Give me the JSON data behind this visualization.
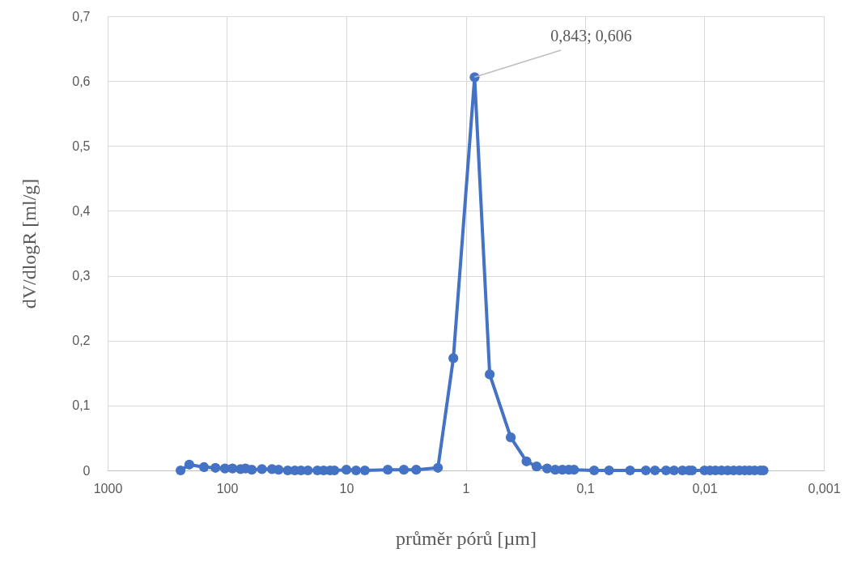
{
  "chart_data": {
    "type": "line",
    "xlabel": "průměr pórů [µm]",
    "ylabel": "dV/dlogR [ml/g]",
    "log": "x",
    "grid": true,
    "marker": "circle",
    "line_style": "solid",
    "xlim": [
      1000,
      0.001
    ],
    "xticks": [
      1000,
      100,
      10,
      1,
      {
        "value": 0.1,
        "label": "0,1"
      },
      {
        "value": 0.01,
        "label": "0,01"
      },
      {
        "value": 0.001,
        "label": "0,001"
      }
    ],
    "ylim": [
      0,
      0.7
    ],
    "yticks": [
      0,
      {
        "value": 0.1,
        "label": "0,1"
      },
      {
        "value": 0.2,
        "label": "0,2"
      },
      {
        "value": 0.3,
        "label": "0,3"
      },
      {
        "value": 0.4,
        "label": "0,4"
      },
      {
        "value": 0.5,
        "label": "0,5"
      },
      {
        "value": 0.6,
        "label": "0,6"
      },
      {
        "value": 0.7,
        "label": "0,7"
      }
    ],
    "x": [
      245,
      207,
      156,
      125,
      104,
      90,
      77,
      70,
      62,
      51,
      42,
      37,
      31,
      27,
      24,
      21,
      17.5,
      15.5,
      13.7,
      12.6,
      10,
      8.3,
      7.0,
      4.5,
      3.3,
      2.6,
      1.71,
      1.27,
      0.843,
      0.63,
      0.42,
      0.31,
      0.255,
      0.208,
      0.178,
      0.155,
      0.137,
      0.124,
      0.084,
      0.063,
      0.042,
      0.031,
      0.026,
      0.021,
      0.018,
      0.0153,
      0.0135,
      0.0127,
      0.01,
      0.009,
      0.0081,
      0.0072,
      0.0064,
      0.0057,
      0.0051,
      0.0046,
      0.0042,
      0.0038,
      0.0034,
      0.0032
    ],
    "series": [
      {
        "color": "#4472c4",
        "values": [
          0,
          0.009,
          0.005,
          0.004,
          0.003,
          0.003,
          0.002,
          0.003,
          0.001,
          0.002,
          0.002,
          0.001,
          0,
          0,
          0,
          0,
          0,
          0,
          0,
          0,
          0.001,
          0,
          0,
          0.001,
          0.001,
          0.001,
          0.004,
          0.173,
          0.606,
          0.148,
          0.051,
          0.014,
          0.006,
          0.003,
          0.001,
          0.001,
          0.001,
          0.001,
          0,
          0,
          0,
          0,
          0,
          0,
          0,
          0,
          0,
          0,
          0,
          0,
          0,
          0,
          0,
          0,
          0,
          0,
          0,
          0,
          0,
          0
        ]
      }
    ],
    "annotations": [
      {
        "text": "0,843; 0,606",
        "x": 0.843,
        "y": 0.606
      }
    ]
  }
}
